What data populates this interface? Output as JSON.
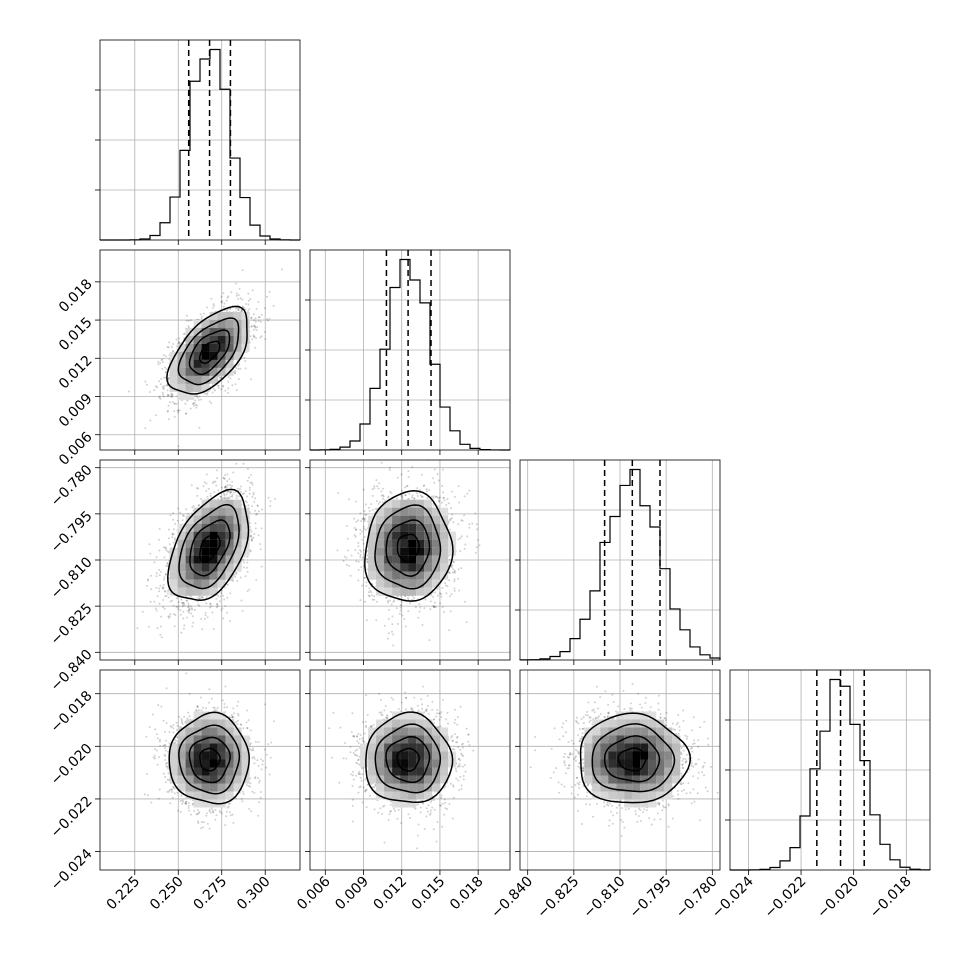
{
  "chart_data": {
    "type": "corner",
    "grid": true,
    "params": [
      {
        "center": 0.268,
        "sigma": 0.0115,
        "q": [
          0.256,
          0.268,
          0.28
        ],
        "range": [
          0.205,
          0.32
        ],
        "ticks": [
          0.225,
          0.25,
          0.275,
          0.3
        ],
        "tick_labels": [
          "0.225",
          "0.250",
          "0.275",
          "0.300"
        ]
      },
      {
        "center": 0.0125,
        "sigma": 0.0017,
        "q": [
          0.0108,
          0.0125,
          0.0143
        ],
        "range": [
          0.0048,
          0.0205
        ],
        "ticks": [
          0.006,
          0.009,
          0.012,
          0.015,
          0.018
        ],
        "tick_labels": [
          "0.006",
          "0.009",
          "0.012",
          "0.015",
          "0.018"
        ]
      },
      {
        "center": -0.806,
        "sigma": 0.0089,
        "q": [
          -0.815,
          -0.806,
          -0.797
        ],
        "range": [
          -0.8425,
          -0.7775
        ],
        "ticks": [
          -0.84,
          -0.825,
          -0.81,
          -0.795,
          -0.78
        ],
        "tick_labels": [
          "−0.840",
          "−0.825",
          "−0.810",
          "−0.795",
          "−0.780"
        ]
      },
      {
        "center": -0.0205,
        "sigma": 0.00085,
        "q": [
          -0.0214,
          -0.0205,
          -0.0196
        ],
        "range": [
          -0.0247,
          -0.0171
        ],
        "ticks": [
          -0.024,
          -0.022,
          -0.02,
          -0.018
        ],
        "tick_labels": [
          "−0.024",
          "−0.022",
          "−0.020",
          "−0.018"
        ]
      }
    ],
    "correlations": [
      {
        "pair": [
          0,
          1
        ],
        "rho": 0.55
      },
      {
        "pair": [
          0,
          2
        ],
        "rho": 0.45
      },
      {
        "pair": [
          1,
          2
        ],
        "rho": 0.05
      },
      {
        "pair": [
          0,
          3
        ],
        "rho": 0.0
      },
      {
        "pair": [
          1,
          3
        ],
        "rho": 0.0
      },
      {
        "pair": [
          2,
          3
        ],
        "rho": 0.0
      }
    ],
    "contour_levels_sigma": [
      0.5,
      1.0,
      1.5,
      2.0
    ],
    "colors": {
      "ink": "#000000",
      "grid": "#b0b0b0",
      "scatter": "#000000"
    }
  }
}
